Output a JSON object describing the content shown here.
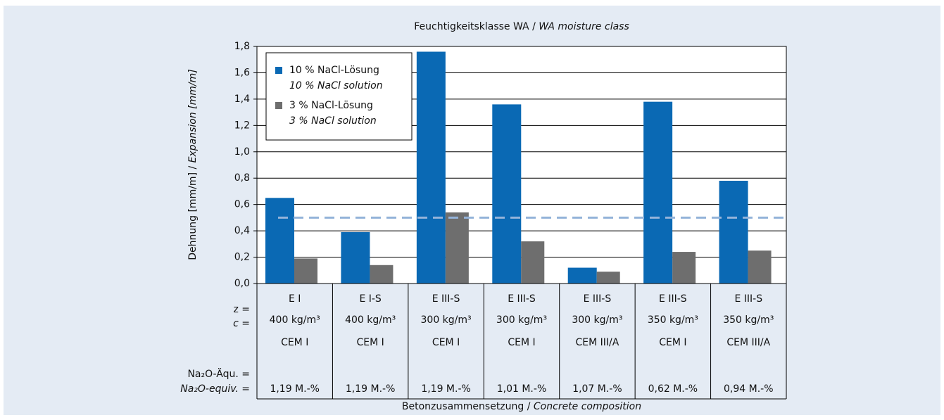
{
  "chart_data": {
    "type": "bar",
    "title": "Feuchtigkeitsklasse WA /",
    "title_italic": "WA moisture class",
    "y_label": "Dehnung [mm/m] /",
    "y_label_italic": "Expansion  [mm/m]",
    "x_label": "Betonzusammensetzung /",
    "x_label_italic": "Concrete composition",
    "categories": [
      "E I",
      "E I-S",
      "E III-S",
      "E III-S",
      "E III-S",
      "E III-S",
      "E III-S"
    ],
    "cement_content": [
      "400 kg/m³",
      "400 kg/m³",
      "300 kg/m³",
      "300 kg/m³",
      "300 kg/m³",
      "350 kg/m³",
      "350 kg/m³"
    ],
    "cement_type": [
      "CEM I",
      "CEM I",
      "CEM I",
      "CEM I",
      "CEM III/A",
      "CEM I",
      "CEM III/A"
    ],
    "na2o_equiv": [
      "1,19 M.-%",
      "1,19 M.-%",
      "1,19 M.-%",
      "1,01 M.-%",
      "1,07 M.-%",
      "0,62 M.-%",
      "0,94 M.-%"
    ],
    "row_labels": {
      "z": "z =",
      "c": "c =",
      "na2o_de": "Na₂O-Äqu. =",
      "na2o_en": "Na₂O-equiv. ="
    },
    "series": [
      {
        "name": "10 % NaCl-Lösung",
        "name_italic": "10 % NaCl solution",
        "color": "#0a69b4",
        "values": [
          0.65,
          0.39,
          1.76,
          1.36,
          0.12,
          1.38,
          0.78
        ]
      },
      {
        "name": "3 % NaCl-Lösung",
        "name_italic": "3 % NaCl solution",
        "color": "#6e6e6e",
        "values": [
          0.19,
          0.14,
          0.54,
          0.32,
          0.09,
          0.24,
          0.25
        ]
      }
    ],
    "reference_line": {
      "value": 0.5,
      "color": "#94b3d9"
    },
    "ylim": [
      0,
      1.8
    ],
    "yticks": [
      {
        "value": 0,
        "label": "0,0"
      },
      {
        "value": 0.2,
        "label": "0,2"
      },
      {
        "value": 0.4,
        "label": "0,4"
      },
      {
        "value": 0.6,
        "label": "0,6"
      },
      {
        "value": 0.8,
        "label": "0,8"
      },
      {
        "value": 1.0,
        "label": "1,0"
      },
      {
        "value": 1.2,
        "label": "1,2"
      },
      {
        "value": 1.4,
        "label": "1,4"
      },
      {
        "value": 1.6,
        "label": "1,6"
      },
      {
        "value": 1.8,
        "label": "1,8"
      }
    ],
    "grid": true,
    "legend": "top-left"
  }
}
